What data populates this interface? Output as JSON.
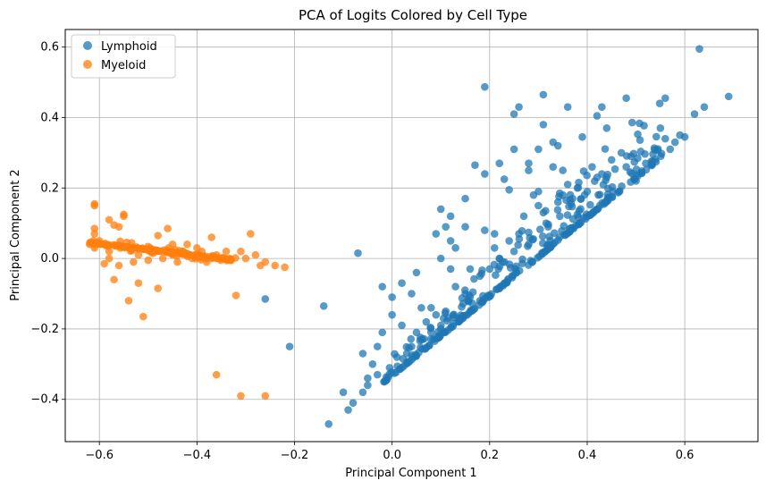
{
  "chart_data": {
    "type": "scatter",
    "title": "PCA of Logits Colored by Cell Type",
    "xlabel": "Principal Component 1",
    "ylabel": "Principal Component 2",
    "xlim": [
      -0.67,
      0.75
    ],
    "ylim": [
      -0.52,
      0.65
    ],
    "xticks": [
      -0.6,
      -0.4,
      -0.2,
      0.0,
      0.2,
      0.4,
      0.6
    ],
    "yticks": [
      -0.4,
      -0.2,
      0.0,
      0.2,
      0.4,
      0.6
    ],
    "xtick_labels": [
      "−0.6",
      "−0.4",
      "−0.2",
      "0.0",
      "0.2",
      "0.4",
      "0.6"
    ],
    "ytick_labels": [
      "−0.4",
      "−0.2",
      "0.0",
      "0.2",
      "0.4",
      "0.6"
    ],
    "grid": true,
    "legend_position": "top-left",
    "series": [
      {
        "name": "Lymphoid",
        "color": "#1f77b4",
        "points": [
          [
            0.63,
            0.595
          ],
          [
            0.69,
            0.46
          ],
          [
            0.64,
            0.43
          ],
          [
            0.62,
            0.41
          ],
          [
            0.56,
            0.455
          ],
          [
            0.48,
            0.455
          ],
          [
            0.43,
            0.43
          ],
          [
            0.31,
            0.465
          ],
          [
            0.19,
            0.487
          ],
          [
            0.36,
            0.43
          ],
          [
            0.26,
            0.43
          ],
          [
            0.25,
            0.41
          ],
          [
            0.42,
            0.405
          ],
          [
            0.6,
            0.345
          ],
          [
            0.59,
            0.35
          ],
          [
            0.55,
            0.37
          ],
          [
            0.58,
            0.33
          ],
          [
            0.56,
            0.34
          ],
          [
            0.57,
            0.31
          ],
          [
            0.44,
            0.37
          ],
          [
            0.31,
            0.38
          ],
          [
            0.33,
            0.33
          ],
          [
            0.39,
            0.345
          ],
          [
            0.49,
            0.29
          ],
          [
            0.47,
            0.3
          ],
          [
            0.52,
            0.27
          ],
          [
            0.3,
            0.31
          ],
          [
            0.25,
            0.31
          ],
          [
            0.17,
            0.265
          ],
          [
            0.22,
            0.27
          ],
          [
            0.34,
            0.32
          ],
          [
            0.28,
            0.27
          ],
          [
            0.28,
            0.25
          ],
          [
            0.41,
            0.26
          ],
          [
            0.42,
            0.23
          ],
          [
            0.35,
            0.25
          ],
          [
            0.33,
            0.26
          ],
          [
            0.19,
            0.24
          ],
          [
            0.23,
            0.225
          ],
          [
            0.24,
            0.195
          ],
          [
            0.3,
            0.19
          ],
          [
            0.35,
            0.18
          ],
          [
            0.36,
            0.21
          ],
          [
            0.3,
            0.15
          ],
          [
            0.15,
            0.17
          ],
          [
            0.1,
            0.14
          ],
          [
            0.12,
            0.12
          ],
          [
            0.12,
            0.05
          ],
          [
            0.09,
            0.07
          ],
          [
            0.11,
            0.09
          ],
          [
            0.15,
            0.09
          ],
          [
            0.19,
            0.08
          ],
          [
            0.21,
            0.07
          ],
          [
            0.13,
            0.03
          ],
          [
            0.1,
            0.0
          ],
          [
            0.12,
            -0.03
          ],
          [
            0.05,
            -0.04
          ],
          [
            0.02,
            -0.07
          ],
          [
            -0.02,
            -0.08
          ],
          [
            0.0,
            -0.11
          ],
          [
            0.04,
            -0.1
          ],
          [
            0.08,
            -0.14
          ],
          [
            -0.07,
            0.015
          ],
          [
            -0.26,
            -0.115
          ],
          [
            -0.21,
            -0.25
          ],
          [
            -0.14,
            -0.135
          ],
          [
            -0.13,
            -0.47
          ],
          [
            -0.09,
            -0.43
          ],
          [
            -0.1,
            -0.38
          ],
          [
            -0.08,
            -0.41
          ],
          [
            -0.06,
            -0.38
          ],
          [
            -0.05,
            -0.34
          ],
          [
            -0.04,
            -0.3
          ],
          [
            -0.03,
            -0.25
          ],
          [
            -0.06,
            -0.27
          ],
          [
            -0.02,
            -0.21
          ],
          [
            0.0,
            -0.16
          ],
          [
            0.02,
            -0.19
          ],
          [
            0.05,
            -0.21
          ],
          [
            0.04,
            -0.25
          ],
          [
            0.06,
            -0.23
          ],
          [
            0.07,
            -0.18
          ],
          [
            0.09,
            -0.16
          ],
          [
            0.06,
            -0.14
          ],
          [
            0.1,
            -0.2
          ],
          [
            0.14,
            -0.17
          ],
          [
            0.15,
            -0.1
          ],
          [
            0.18,
            -0.05
          ],
          [
            0.16,
            -0.11
          ],
          [
            0.2,
            -0.03
          ],
          [
            0.24,
            0.05
          ],
          [
            0.26,
            0.07
          ],
          [
            0.27,
            0.12
          ],
          [
            0.29,
            0.18
          ],
          [
            0.31,
            0.13
          ],
          [
            0.32,
            0.09
          ],
          [
            0.34,
            0.16
          ],
          [
            0.37,
            0.17
          ],
          [
            0.38,
            0.2
          ],
          [
            0.4,
            0.19
          ],
          [
            0.45,
            0.28
          ],
          [
            0.48,
            0.26
          ],
          [
            0.5,
            0.22
          ],
          [
            0.43,
            0.24
          ],
          [
            0.22,
            0.0
          ],
          [
            0.25,
            0.02
          ],
          [
            0.28,
            0.04
          ],
          [
            0.18,
            -0.12
          ],
          [
            0.13,
            -0.08
          ],
          [
            -0.05,
            -0.36
          ],
          [
            -0.03,
            -0.33
          ],
          [
            0.01,
            -0.28
          ],
          [
            0.03,
            -0.27
          ],
          [
            0.08,
            -0.21
          ],
          [
            0.11,
            -0.15
          ],
          [
            0.16,
            -0.03
          ],
          [
            0.21,
            0.03
          ]
        ],
        "band": {
          "x_start": -0.02,
          "x_end": 0.555,
          "y_start": -0.355,
          "y_end": 0.29,
          "count": 320,
          "spread": 0.13
        }
      },
      {
        "name": "Myeloid",
        "color": "#ff7f0e",
        "points": [
          [
            -0.61,
            0.155
          ],
          [
            -0.61,
            0.15
          ],
          [
            -0.61,
            0.085
          ],
          [
            -0.61,
            0.07
          ],
          [
            -0.55,
            0.125
          ],
          [
            -0.55,
            0.12
          ],
          [
            -0.56,
            0.09
          ],
          [
            -0.58,
            0.11
          ],
          [
            -0.57,
            0.095
          ],
          [
            -0.46,
            0.085
          ],
          [
            -0.37,
            0.06
          ],
          [
            -0.48,
            0.065
          ],
          [
            -0.45,
            0.04
          ],
          [
            -0.42,
            0.04
          ],
          [
            -0.4,
            0.03
          ],
          [
            -0.39,
            0.02
          ],
          [
            -0.36,
            0.01
          ],
          [
            -0.34,
            0.02
          ],
          [
            -0.31,
            0.02
          ],
          [
            -0.29,
            0.07
          ],
          [
            -0.28,
            0.01
          ],
          [
            -0.27,
            -0.02
          ],
          [
            -0.26,
            -0.01
          ],
          [
            -0.24,
            -0.02
          ],
          [
            -0.22,
            -0.025
          ],
          [
            -0.32,
            -0.105
          ],
          [
            -0.36,
            -0.33
          ],
          [
            -0.31,
            -0.39
          ],
          [
            -0.26,
            -0.39
          ],
          [
            -0.52,
            -0.07
          ],
          [
            -0.54,
            -0.12
          ],
          [
            -0.51,
            -0.165
          ],
          [
            -0.57,
            -0.06
          ],
          [
            -0.48,
            -0.085
          ],
          [
            -0.59,
            -0.015
          ],
          [
            -0.58,
            0.0
          ],
          [
            -0.56,
            -0.02
          ],
          [
            -0.53,
            -0.01
          ],
          [
            -0.5,
            -0.005
          ],
          [
            -0.47,
            0.0
          ],
          [
            -0.44,
            -0.01
          ],
          [
            -0.41,
            0.0
          ],
          [
            -0.38,
            -0.01
          ],
          [
            -0.35,
            0.0
          ],
          [
            -0.33,
            -0.005
          ],
          [
            -0.3,
            0.0
          ],
          [
            -0.52,
            0.01
          ],
          [
            -0.49,
            0.015
          ],
          [
            -0.45,
            0.01
          ],
          [
            -0.43,
            0.02
          ],
          [
            -0.4,
            0.005
          ],
          [
            -0.37,
            0.0
          ],
          [
            -0.62,
            0.04
          ],
          [
            -0.61,
            0.03
          ],
          [
            -0.6,
            0.05
          ],
          [
            -0.59,
            0.04
          ],
          [
            -0.58,
            0.02
          ]
        ],
        "band": {
          "x_start": -0.62,
          "x_end": -0.32,
          "y_start": 0.045,
          "y_end": -0.005,
          "count": 180,
          "spread": 0.035
        }
      }
    ]
  }
}
